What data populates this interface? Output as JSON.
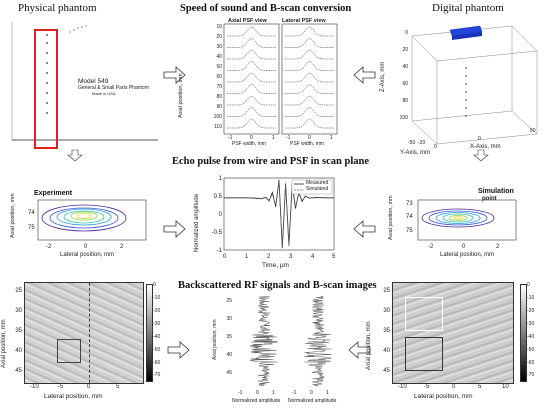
{
  "titles": {
    "physical": "Physical phantom",
    "sos": "Speed of sound and B-scan conversion",
    "digital": "Digital phantom",
    "echo": "Echo pulse from wire and PSF in scan plane",
    "backscatter": "Backscattered RF signals and B-scan images"
  },
  "phantom_label": {
    "model": "Model 549",
    "name": "General & Small Parts Phantom",
    "made": "Made in USA"
  },
  "psf_panel": {
    "axial_title": "Axial PSF view",
    "lateral_title": "Lateral PSF view",
    "ylabel": "Axial position, mm",
    "xlabel_left": "PSF width, mm",
    "xlabel_right": "PSF width, mm",
    "yticks": [
      "10",
      "20",
      "30",
      "40",
      "50",
      "60",
      "70",
      "80",
      "90",
      "100",
      "110"
    ],
    "xticks": [
      "-1",
      "0",
      "1"
    ]
  },
  "digital_axes": {
    "zlabel": "Z-Axis, mm",
    "ylabel": "Y-Axis, mm",
    "xlabel": "X-Axis, mm",
    "zticks": [
      "0",
      "20",
      "40",
      "60",
      "80",
      "100"
    ],
    "yticks": [
      "-20",
      "0"
    ],
    "xticks": [
      "0",
      "50"
    ],
    "xticks_left": [
      "-50"
    ]
  },
  "experiment": {
    "title": "Experiment",
    "ylabel": "Axial position, mm",
    "xlabel": "Lateral position, mm",
    "yticks": [
      "74",
      "75"
    ],
    "xticks": [
      "-2",
      "0",
      "2"
    ]
  },
  "simulation": {
    "title": "Simulation",
    "point": "point",
    "ylabel": "Axial position, mm",
    "xlabel": "Lateral position, mm",
    "yticks": [
      "73",
      "74",
      "75"
    ],
    "xticks": [
      "-2",
      "0",
      "2"
    ]
  },
  "chart_data": {
    "type": "line",
    "xlabel": "Time, μm",
    "ylabel": "Normalized amplitude",
    "xlim": [
      0,
      5
    ],
    "ylim": [
      -1,
      1
    ],
    "xticks": [
      "0",
      "1",
      "2",
      "3",
      "4",
      "5"
    ],
    "yticks": [
      "1",
      "0.5",
      "0",
      "-0.5",
      "-1"
    ],
    "legend": "top-right",
    "series": [
      {
        "name": "Measured",
        "x": [
          0,
          0.5,
          1.0,
          1.4,
          1.7,
          1.9,
          2.05,
          2.2,
          2.35,
          2.5,
          2.65,
          2.8,
          2.95,
          3.1,
          3.25,
          3.4,
          3.55,
          3.7,
          3.9,
          4.2,
          4.6,
          5.0
        ],
        "y": [
          0.45,
          0.45,
          0.45,
          0.44,
          0.42,
          0.46,
          0.36,
          0.6,
          0.2,
          0.95,
          -0.95,
          0.85,
          -0.85,
          0.8,
          0.15,
          0.6,
          0.35,
          0.5,
          0.44,
          0.46,
          0.45,
          0.45
        ]
      },
      {
        "name": "Simulated",
        "x": [
          0,
          0.5,
          1.0,
          1.4,
          1.7,
          1.9,
          2.05,
          2.2,
          2.35,
          2.5,
          2.65,
          2.8,
          2.95,
          3.1,
          3.25,
          3.4,
          3.55,
          3.7,
          3.9,
          4.2,
          4.6,
          5.0
        ],
        "y": [
          0.45,
          0.45,
          0.45,
          0.45,
          0.43,
          0.47,
          0.38,
          0.55,
          0.25,
          0.9,
          -0.9,
          0.8,
          -0.9,
          0.85,
          0.2,
          0.55,
          0.38,
          0.48,
          0.45,
          0.45,
          0.45,
          0.45
        ]
      }
    ]
  },
  "bscan_left": {
    "ylabel": "Axial position, mm",
    "xlabel": "Lateral position, mm",
    "yticks": [
      "25",
      "30",
      "35",
      "40",
      "45"
    ],
    "xticks": [
      "-10",
      "-5",
      "0",
      "5"
    ],
    "cbar": [
      "0",
      "-10",
      "-20",
      "-30",
      "-40",
      "-50",
      "-60",
      "-70"
    ]
  },
  "bscan_right": {
    "ylabel": "Axial position, mm",
    "xlabel": "Lateral position, mm",
    "yticks": [
      "25",
      "30",
      "35",
      "40",
      "45"
    ],
    "xticks": [
      "-10",
      "-5",
      "0",
      "5",
      "10"
    ],
    "cbar": [
      "0",
      "-10",
      "-20",
      "-30",
      "-40",
      "-50",
      "-60",
      "-70"
    ]
  },
  "rf_panel": {
    "ylabel": "Axial position, mm",
    "yticks": [
      "25",
      "30",
      "35",
      "40",
      "45"
    ],
    "xlabel": "Normalized amplitude",
    "xticks": [
      "-1",
      "0",
      "1"
    ]
  }
}
